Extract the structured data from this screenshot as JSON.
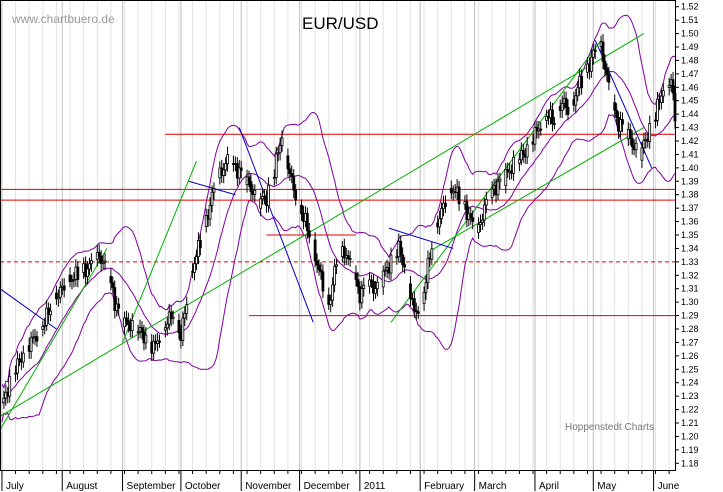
{
  "chart_data": {
    "type": "candlestick",
    "title": "EUR/USD",
    "watermark": "www.chartbuero.de",
    "credit": "Hoppenstedt Charts",
    "ylim": [
      1.175,
      1.525
    ],
    "y_tick_step": 0.01,
    "x_months": [
      "July",
      "August",
      "September",
      "October",
      "November",
      "December",
      "2011",
      "February",
      "March",
      "April",
      "May",
      "June"
    ],
    "x_months_days": [
      0,
      31,
      62,
      92,
      123,
      153,
      184,
      215,
      243,
      274,
      304,
      335
    ],
    "x_range_days": [
      -1,
      346
    ],
    "horizontal_lines": [
      {
        "value": 1.425,
        "style": "solid",
        "color": "#e00000"
      },
      {
        "value": 1.384,
        "style": "solid",
        "color": "#e00000"
      },
      {
        "value": 1.376,
        "style": "solid",
        "color": "#e00000"
      },
      {
        "value": 1.33,
        "style": "dashed",
        "color": "#e00000"
      },
      {
        "value": 1.29,
        "style": "solid",
        "color": "#e00000"
      },
      {
        "value": 1.35,
        "style": "solid",
        "color": "#e00000"
      }
    ],
    "trend_lines": [
      {
        "color": "#00b000",
        "points": [
          [
            -1,
            1.205
          ],
          [
            54,
            1.34
          ]
        ]
      },
      {
        "color": "#00b000",
        "points": [
          [
            -1,
            1.215
          ],
          [
            330,
            1.5
          ]
        ]
      },
      {
        "color": "#00b000",
        "points": [
          [
            200,
            1.285
          ],
          [
            308,
            1.495
          ]
        ]
      },
      {
        "color": "#00b000",
        "points": [
          [
            220,
            1.338
          ],
          [
            330,
            1.43
          ]
        ]
      },
      {
        "color": "#00b000",
        "points": [
          [
            62,
            1.27
          ],
          [
            100,
            1.405
          ]
        ]
      },
      {
        "color": "#0000c0",
        "points": [
          [
            122,
            1.43
          ],
          [
            160,
            1.285
          ]
        ]
      },
      {
        "color": "#0000c0",
        "points": [
          [
            -1,
            1.31
          ],
          [
            28,
            1.28
          ]
        ]
      },
      {
        "color": "#0000c0",
        "points": [
          [
            199,
            1.355
          ],
          [
            232,
            1.34
          ]
        ]
      },
      {
        "color": "#0000c0",
        "points": [
          [
            305,
            1.495
          ],
          [
            334,
            1.4
          ]
        ]
      },
      {
        "color": "#0000c0",
        "points": [
          [
            96,
            1.39
          ],
          [
            120,
            1.38
          ]
        ]
      }
    ],
    "pivots": [
      [
        -1,
        1.218
      ],
      [
        5,
        1.245
      ],
      [
        12,
        1.265
      ],
      [
        20,
        1.28
      ],
      [
        28,
        1.305
      ],
      [
        36,
        1.318
      ],
      [
        44,
        1.325
      ],
      [
        50,
        1.335
      ],
      [
        55,
        1.32
      ],
      [
        58,
        1.3
      ],
      [
        63,
        1.285
      ],
      [
        68,
        1.282
      ],
      [
        73,
        1.275
      ],
      [
        78,
        1.266
      ],
      [
        84,
        1.283
      ],
      [
        88,
        1.292
      ],
      [
        92,
        1.275
      ],
      [
        98,
        1.325
      ],
      [
        104,
        1.355
      ],
      [
        110,
        1.39
      ],
      [
        116,
        1.405
      ],
      [
        120,
        1.4
      ],
      [
        124,
        1.395
      ],
      [
        128,
        1.385
      ],
      [
        132,
        1.375
      ],
      [
        136,
        1.378
      ],
      [
        140,
        1.398
      ],
      [
        144,
        1.425
      ],
      [
        148,
        1.395
      ],
      [
        152,
        1.375
      ],
      [
        156,
        1.36
      ],
      [
        160,
        1.34
      ],
      [
        164,
        1.318
      ],
      [
        168,
        1.297
      ],
      [
        172,
        1.33
      ],
      [
        176,
        1.338
      ],
      [
        180,
        1.325
      ],
      [
        184,
        1.305
      ],
      [
        188,
        1.315
      ],
      [
        192,
        1.31
      ],
      [
        196,
        1.32
      ],
      [
        200,
        1.33
      ],
      [
        204,
        1.34
      ],
      [
        208,
        1.322
      ],
      [
        212,
        1.292
      ],
      [
        216,
        1.3
      ],
      [
        220,
        1.335
      ],
      [
        224,
        1.36
      ],
      [
        228,
        1.375
      ],
      [
        232,
        1.385
      ],
      [
        236,
        1.375
      ],
      [
        240,
        1.365
      ],
      [
        244,
        1.35
      ],
      [
        248,
        1.37
      ],
      [
        252,
        1.382
      ],
      [
        256,
        1.39
      ],
      [
        260,
        1.396
      ],
      [
        264,
        1.405
      ],
      [
        268,
        1.41
      ],
      [
        272,
        1.42
      ],
      [
        276,
        1.43
      ],
      [
        280,
        1.44
      ],
      [
        284,
        1.435
      ],
      [
        288,
        1.45
      ],
      [
        292,
        1.44
      ],
      [
        296,
        1.46
      ],
      [
        300,
        1.47
      ],
      [
        304,
        1.485
      ],
      [
        308,
        1.49
      ],
      [
        312,
        1.46
      ],
      [
        316,
        1.435
      ],
      [
        320,
        1.43
      ],
      [
        324,
        1.418
      ],
      [
        328,
        1.41
      ],
      [
        332,
        1.425
      ],
      [
        336,
        1.44
      ],
      [
        340,
        1.46
      ],
      [
        344,
        1.465
      ],
      [
        346,
        1.438
      ]
    ]
  }
}
